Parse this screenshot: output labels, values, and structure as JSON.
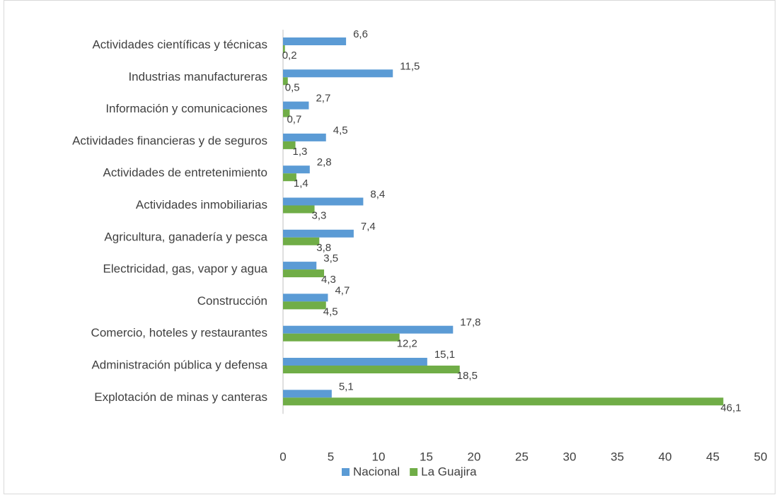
{
  "chart_data": {
    "type": "bar",
    "orientation": "horizontal",
    "categories": [
      "Actividades científicas y técnicas",
      "Industrias manufactureras",
      "Información y comunicaciones",
      "Actividades financieras y de seguros",
      "Actividades de entretenimiento",
      "Actividades inmobiliarias",
      "Agricultura, ganadería y pesca",
      "Electricidad, gas, vapor y agua",
      "Construcción",
      "Comercio, hoteles y restaurantes",
      "Administración pública y defensa",
      "Explotación de minas y canteras"
    ],
    "series": [
      {
        "name": "Nacional",
        "color": "#5b9bd5",
        "values": [
          6.6,
          11.5,
          2.7,
          4.5,
          2.8,
          8.4,
          7.4,
          3.5,
          4.7,
          17.8,
          15.1,
          5.1
        ],
        "value_labels": [
          "6,6",
          "11,5",
          "2,7",
          "4,5",
          "2,8",
          "8,4",
          "7,4",
          "3,5",
          "4,7",
          "17,8",
          "15,1",
          "5,1"
        ]
      },
      {
        "name": "La Guajira",
        "color": "#70ad47",
        "values": [
          0.2,
          0.5,
          0.7,
          1.3,
          1.4,
          3.3,
          3.8,
          4.3,
          4.5,
          12.2,
          18.5,
          46.1
        ],
        "value_labels": [
          "0,2",
          "0,5",
          "0,7",
          "1,3",
          "1,4",
          "3,3",
          "3,8",
          "4,3",
          "4,5",
          "12,2",
          "18,5",
          "46,1"
        ]
      }
    ],
    "xlim": [
      0,
      50
    ],
    "xticks": [
      0,
      5,
      10,
      15,
      20,
      25,
      30,
      35,
      40,
      45,
      50
    ],
    "grid": false,
    "legend": "bottom"
  }
}
